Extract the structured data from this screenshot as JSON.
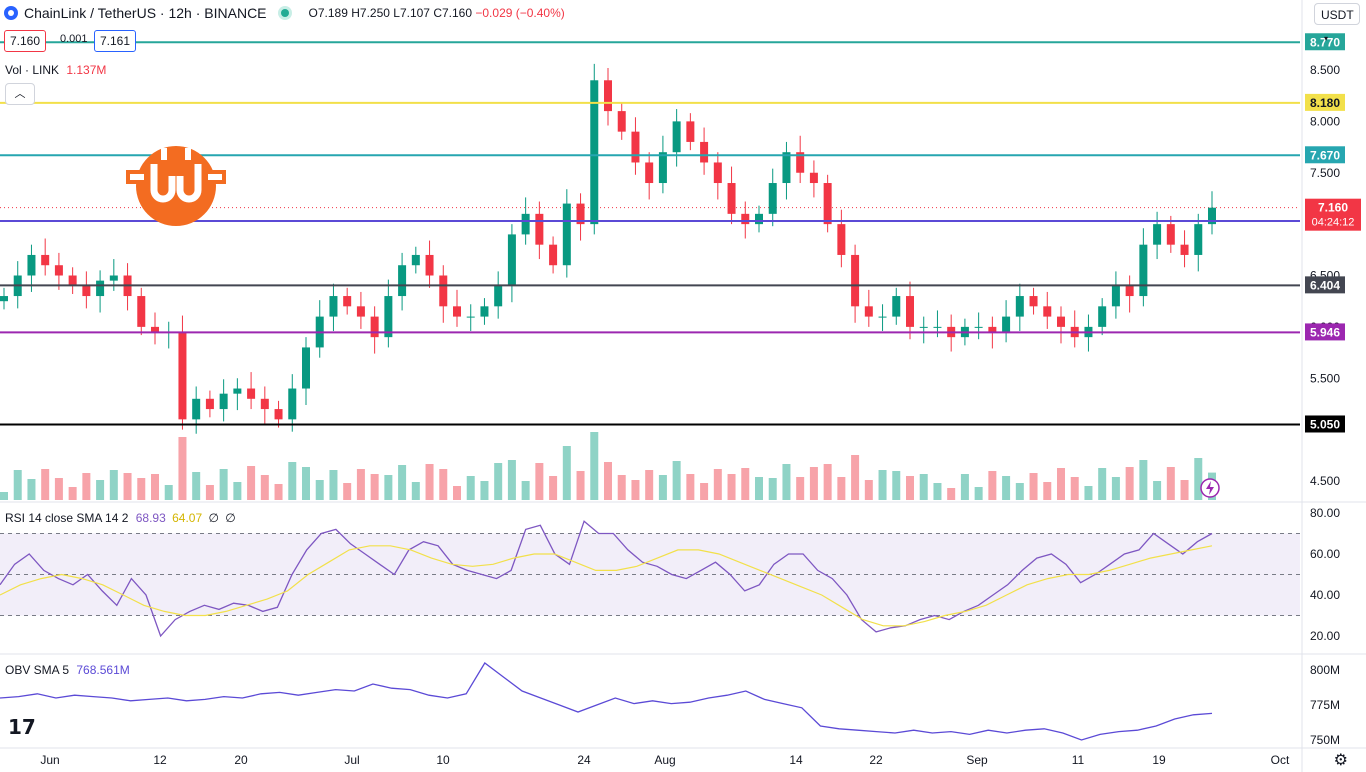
{
  "header": {
    "symbol": "ChainLink / TetherUS · 12h · BINANCE",
    "ohlc_o": "O7.189",
    "ohlc_h": "H7.250",
    "ohlc_l": "L7.107",
    "ohlc_c": "C7.160",
    "ohlc_chg": "−0.029 (−0.40%)",
    "bid": "7.160",
    "spread": "0.001",
    "ask": "7.161",
    "currency": "USDT"
  },
  "vol_label": {
    "name": "Vol · LINK",
    "value": "1.137M"
  },
  "rsi_label": {
    "name": "RSI 14 close SMA 14 2",
    "v1": "68.93",
    "v2": "64.07",
    "v3": "∅",
    "v4": "∅"
  },
  "obv_label": {
    "name": "OBV SMA 5",
    "value": "768.561M"
  },
  "colors": {
    "up": "#089981",
    "down": "#f23645",
    "rsi": "#7e57c2",
    "sma": "#f2e04a"
  },
  "chart_data": [
    {
      "type": "candlestick",
      "title": "ChainLink / TetherUS · 12h · BINANCE",
      "y_ticks": [
        "8.500",
        "8.000",
        "7.500",
        "6.500",
        "6.000",
        "5.500",
        "4.500"
      ],
      "ylim": [
        4.4,
        8.9
      ],
      "x_ticks": [
        "Jun",
        "12",
        "20",
        "Jul",
        "10",
        "24",
        "Aug",
        "14",
        "22",
        "Sep",
        "11",
        "19",
        "Oct"
      ],
      "horizontal_lines": [
        {
          "value": 8.77,
          "label": "8.770",
          "color": "#26a69a"
        },
        {
          "value": 8.18,
          "label": "8.180",
          "color": "#f2e04a"
        },
        {
          "value": 7.67,
          "label": "7.670",
          "color": "#26a6b0"
        },
        {
          "value": 7.03,
          "label": "7.030",
          "color": "#5b4ad6"
        },
        {
          "value": 6.404,
          "label": "6.404",
          "color": "#434651"
        },
        {
          "value": 5.946,
          "label": "5.946",
          "color": "#9c27b0"
        },
        {
          "value": 5.05,
          "label": "5.050",
          "color": "#000000"
        }
      ],
      "current_price": {
        "value": 7.16,
        "label": "7.160",
        "countdown": "04:24:12"
      },
      "close_series": [
        6.3,
        6.5,
        6.7,
        6.6,
        6.5,
        6.4,
        6.3,
        6.45,
        6.5,
        6.3,
        6.0,
        5.95,
        5.95,
        5.1,
        5.3,
        5.2,
        5.35,
        5.4,
        5.3,
        5.2,
        5.1,
        5.4,
        5.8,
        6.1,
        6.3,
        6.2,
        6.1,
        5.9,
        6.3,
        6.6,
        6.7,
        6.5,
        6.2,
        6.1,
        6.1,
        6.2,
        6.4,
        6.9,
        7.1,
        6.8,
        6.6,
        7.2,
        7.0,
        8.4,
        8.1,
        7.9,
        7.6,
        7.4,
        7.7,
        8.0,
        7.8,
        7.6,
        7.4,
        7.1,
        7.0,
        7.1,
        7.4,
        7.7,
        7.5,
        7.4,
        7.0,
        6.7,
        6.2,
        6.1,
        6.1,
        6.3,
        6.0,
        6.0,
        6.0,
        5.9,
        6.0,
        6.0,
        5.95,
        6.1,
        6.3,
        6.2,
        6.1,
        6.0,
        5.9,
        6.0,
        6.2,
        6.4,
        6.3,
        6.8,
        7.0,
        6.8,
        6.7,
        7.0,
        7.16
      ],
      "volume_note": "Vol · LINK 1.137M"
    },
    {
      "type": "line",
      "title": "RSI 14 close SMA 14 2",
      "y_ticks": [
        "80.00",
        "60.00",
        "40.00",
        "20.00"
      ],
      "ylim": [
        15,
        85
      ],
      "bands": [
        30,
        50,
        70
      ],
      "series": [
        {
          "name": "RSI",
          "values": [
            45,
            55,
            60,
            52,
            48,
            45,
            50,
            42,
            35,
            48,
            40,
            20,
            28,
            32,
            35,
            33,
            36,
            35,
            32,
            34,
            50,
            62,
            70,
            72,
            65,
            60,
            55,
            50,
            62,
            66,
            64,
            55,
            52,
            50,
            48,
            52,
            72,
            74,
            60,
            55,
            76,
            70,
            70,
            62,
            56,
            54,
            50,
            48,
            52,
            56,
            50,
            42,
            45,
            55,
            60,
            60,
            52,
            48,
            40,
            28,
            22,
            24,
            25,
            28,
            30,
            28,
            32,
            35,
            40,
            45,
            52,
            58,
            60,
            55,
            46,
            50,
            55,
            60,
            62,
            70,
            65,
            60,
            66,
            70
          ],
          "color": "#7e57c2"
        },
        {
          "name": "SMA",
          "values": [
            40,
            45,
            48,
            50,
            48,
            45,
            40,
            35,
            32,
            30,
            30,
            32,
            35,
            38,
            42,
            50,
            56,
            62,
            64,
            64,
            62,
            58,
            55,
            54,
            55,
            58,
            60,
            60,
            56,
            52,
            52,
            54,
            58,
            62,
            62,
            60,
            56,
            52,
            48,
            44,
            40,
            34,
            28,
            25,
            25,
            27,
            30,
            32,
            35,
            40,
            45,
            48,
            50,
            50,
            52,
            55,
            58,
            60,
            62,
            64
          ],
          "color": "#f2e04a"
        }
      ]
    },
    {
      "type": "line",
      "title": "OBV SMA 5",
      "y_ticks": [
        "800M",
        "775M",
        "750M"
      ],
      "ylim": [
        740,
        810
      ],
      "series": [
        {
          "name": "OBV",
          "values": [
            780,
            781,
            783,
            780,
            782,
            781,
            780,
            778,
            779,
            780,
            778,
            779,
            781,
            780,
            783,
            784,
            782,
            784,
            786,
            785,
            790,
            787,
            786,
            782,
            780,
            783,
            805,
            795,
            785,
            780,
            775,
            770,
            775,
            780,
            776,
            778,
            776,
            777,
            780,
            782,
            785,
            779,
            776,
            773,
            760,
            758,
            757,
            756,
            755,
            757,
            755,
            756,
            754,
            757,
            755,
            757,
            758,
            755,
            750,
            754,
            756,
            757,
            760,
            765,
            768,
            769
          ],
          "color": "#5b4ad6"
        }
      ]
    }
  ]
}
